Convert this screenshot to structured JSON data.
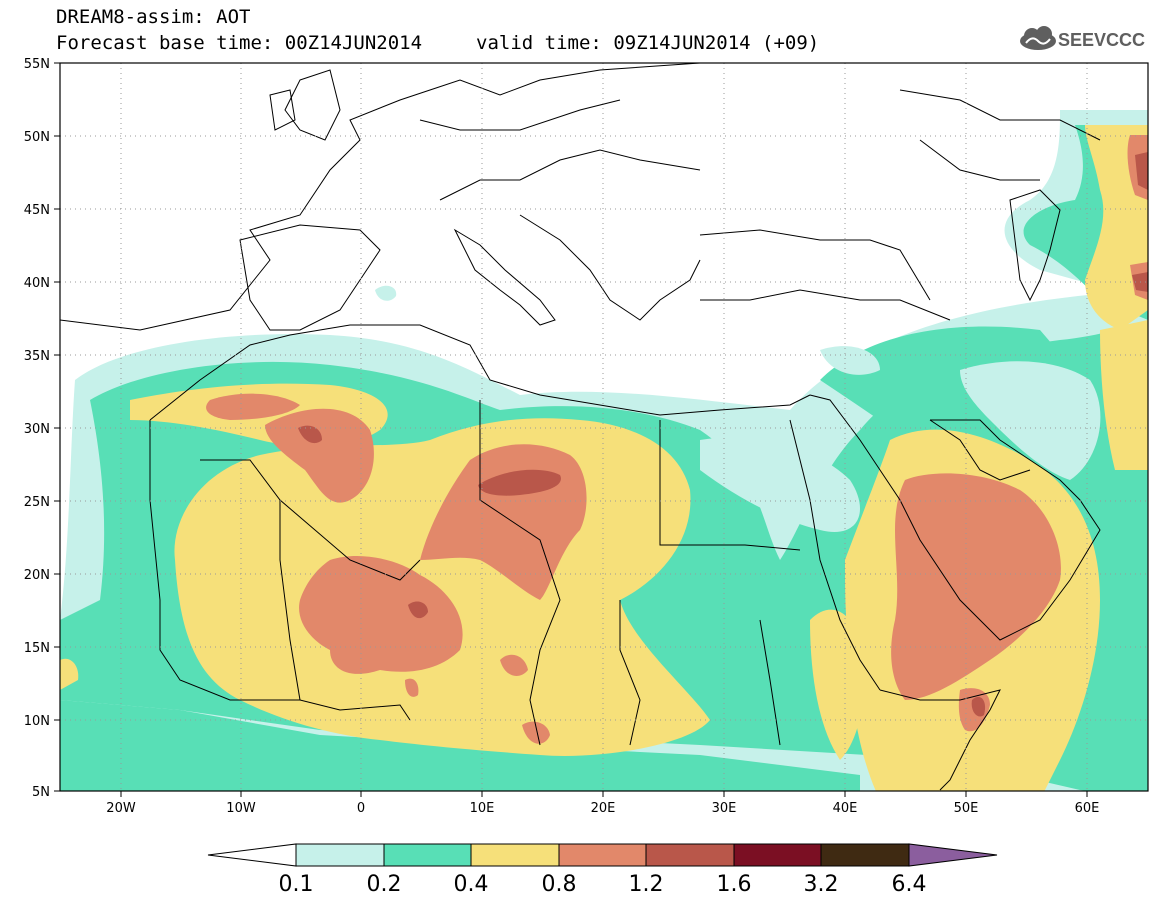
{
  "header": {
    "title": "DREAM8-assim: AOT",
    "forecast_base": "Forecast base time: 00Z14JUN2014",
    "valid_time": "valid time: 09Z14JUN2014 (+09)",
    "logo_text": "SEEVCCC"
  },
  "map": {
    "lon_range": [
      -25,
      65
    ],
    "lat_range": [
      5,
      55
    ],
    "lat_ticks": [
      "55N",
      "50N",
      "45N",
      "40N",
      "35N",
      "30N",
      "25N",
      "20N",
      "15N",
      "10N",
      "5N"
    ],
    "lon_ticks": [
      "20W",
      "10W",
      "0",
      "10E",
      "20E",
      "30E",
      "40E",
      "50E",
      "60E"
    ],
    "variable": "AOT"
  },
  "colorbar": {
    "labels": [
      "0.1",
      "0.2",
      "0.4",
      "0.8",
      "1.2",
      "1.6",
      "3.2",
      "6.4"
    ],
    "colors": [
      "#ffffff",
      "#c6f1ea",
      "#58dfb6",
      "#f6e07a",
      "#e2886a",
      "#b9574a",
      "#7b0f23",
      "#3f2a12",
      "#8b5e9e"
    ]
  }
}
